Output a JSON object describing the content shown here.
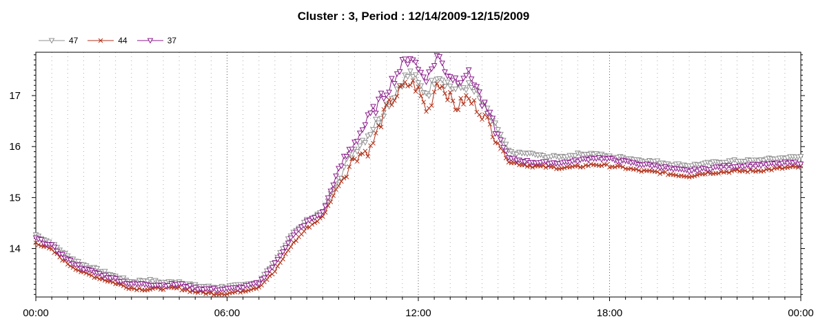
{
  "chart_data": {
    "type": "line",
    "title": "Cluster : 3, Period : 12/14/2009-12/15/2009",
    "xlabel": "",
    "ylabel": "",
    "x_ticks": [
      "00:00",
      "06:00",
      "12:00",
      "18:00",
      "00:00"
    ],
    "x_tick_hours": [
      0,
      6,
      12,
      18,
      24
    ],
    "y_ticks": [
      14,
      15,
      16,
      17
    ],
    "ylim": [
      13.05,
      17.85
    ],
    "xlim_hours": [
      0,
      24
    ],
    "grid": "dotted",
    "legend_position": "top-left",
    "sample_interval_minutes": 5,
    "series": [
      {
        "name": "47",
        "color": "#909090",
        "marker": "triangle-down",
        "points": [
          [
            0,
            14.27
          ],
          [
            0.5,
            14.1
          ],
          [
            1,
            13.85
          ],
          [
            1.5,
            13.68
          ],
          [
            2,
            13.57
          ],
          [
            2.5,
            13.45
          ],
          [
            3,
            13.35
          ],
          [
            3.5,
            13.38
          ],
          [
            4,
            13.33
          ],
          [
            4.5,
            13.35
          ],
          [
            5,
            13.27
          ],
          [
            5.5,
            13.24
          ],
          [
            6,
            13.25
          ],
          [
            6.5,
            13.28
          ],
          [
            7,
            13.35
          ],
          [
            7.5,
            13.75
          ],
          [
            8,
            14.25
          ],
          [
            8.5,
            14.55
          ],
          [
            9,
            14.72
          ],
          [
            9.5,
            15.4
          ],
          [
            10,
            15.95
          ],
          [
            10.5,
            16.3
          ],
          [
            11,
            16.8
          ],
          [
            11.5,
            17.3
          ],
          [
            11.8,
            17.45
          ],
          [
            12,
            17.2
          ],
          [
            12.3,
            17.05
          ],
          [
            12.6,
            17.45
          ],
          [
            12.9,
            17.25
          ],
          [
            13.2,
            17.1
          ],
          [
            13.5,
            17.2
          ],
          [
            13.8,
            17.05
          ],
          [
            14,
            16.8
          ],
          [
            14.3,
            16.55
          ],
          [
            14.6,
            16.2
          ],
          [
            14.85,
            15.9
          ],
          [
            15,
            15.87
          ],
          [
            15.5,
            15.86
          ],
          [
            16,
            15.8
          ],
          [
            16.5,
            15.8
          ],
          [
            17,
            15.85
          ],
          [
            17.5,
            15.86
          ],
          [
            18,
            15.8
          ],
          [
            18.5,
            15.78
          ],
          [
            19,
            15.73
          ],
          [
            19.5,
            15.7
          ],
          [
            20,
            15.65
          ],
          [
            20.5,
            15.63
          ],
          [
            21,
            15.66
          ],
          [
            21.5,
            15.7
          ],
          [
            22,
            15.72
          ],
          [
            22.5,
            15.72
          ],
          [
            23,
            15.75
          ],
          [
            23.5,
            15.78
          ],
          [
            24,
            15.8
          ]
        ]
      },
      {
        "name": "44",
        "color": "#b03018",
        "marker": "x",
        "points": [
          [
            0,
            14.12
          ],
          [
            0.5,
            13.97
          ],
          [
            1,
            13.7
          ],
          [
            1.5,
            13.52
          ],
          [
            2,
            13.42
          ],
          [
            2.5,
            13.32
          ],
          [
            3,
            13.22
          ],
          [
            3.5,
            13.2
          ],
          [
            4,
            13.22
          ],
          [
            4.5,
            13.22
          ],
          [
            5,
            13.15
          ],
          [
            5.5,
            13.12
          ],
          [
            6,
            13.12
          ],
          [
            6.5,
            13.17
          ],
          [
            7,
            13.25
          ],
          [
            7.5,
            13.55
          ],
          [
            8,
            14.05
          ],
          [
            8.5,
            14.4
          ],
          [
            9,
            14.62
          ],
          [
            9.5,
            15.25
          ],
          [
            10,
            15.8
          ],
          [
            10.5,
            15.95
          ],
          [
            11,
            16.75
          ],
          [
            11.5,
            17.15
          ],
          [
            11.8,
            17.25
          ],
          [
            12,
            17.1
          ],
          [
            12.3,
            16.65
          ],
          [
            12.6,
            17.3
          ],
          [
            12.9,
            17.05
          ],
          [
            13.2,
            16.75
          ],
          [
            13.5,
            16.95
          ],
          [
            13.8,
            16.8
          ],
          [
            14,
            16.65
          ],
          [
            14.3,
            16.35
          ],
          [
            14.6,
            15.95
          ],
          [
            14.85,
            15.7
          ],
          [
            15,
            15.68
          ],
          [
            15.5,
            15.62
          ],
          [
            16,
            15.6
          ],
          [
            16.5,
            15.58
          ],
          [
            17,
            15.6
          ],
          [
            17.5,
            15.65
          ],
          [
            18,
            15.62
          ],
          [
            18.5,
            15.58
          ],
          [
            19,
            15.52
          ],
          [
            19.5,
            15.5
          ],
          [
            20,
            15.45
          ],
          [
            20.5,
            15.42
          ],
          [
            21,
            15.48
          ],
          [
            21.5,
            15.5
          ],
          [
            22,
            15.52
          ],
          [
            22.5,
            15.52
          ],
          [
            23,
            15.55
          ],
          [
            23.5,
            15.58
          ],
          [
            24,
            15.6
          ]
        ]
      },
      {
        "name": "37",
        "color": "#8b1a8b",
        "marker": "triangle-down",
        "points": [
          [
            0,
            14.2
          ],
          [
            0.5,
            14.05
          ],
          [
            1,
            13.78
          ],
          [
            1.5,
            13.6
          ],
          [
            2,
            13.5
          ],
          [
            2.5,
            13.4
          ],
          [
            3,
            13.3
          ],
          [
            3.5,
            13.3
          ],
          [
            4,
            13.28
          ],
          [
            4.5,
            13.3
          ],
          [
            5,
            13.22
          ],
          [
            5.5,
            13.2
          ],
          [
            6,
            13.2
          ],
          [
            6.5,
            13.24
          ],
          [
            7,
            13.32
          ],
          [
            7.5,
            13.7
          ],
          [
            8,
            14.2
          ],
          [
            8.5,
            14.52
          ],
          [
            9,
            14.7
          ],
          [
            9.5,
            15.55
          ],
          [
            10,
            16.1
          ],
          [
            10.5,
            16.6
          ],
          [
            11,
            17.1
          ],
          [
            11.5,
            17.6
          ],
          [
            11.8,
            17.8
          ],
          [
            12,
            17.5
          ],
          [
            12.3,
            17.35
          ],
          [
            12.6,
            17.8
          ],
          [
            12.9,
            17.45
          ],
          [
            13.2,
            17.3
          ],
          [
            13.5,
            17.45
          ],
          [
            13.8,
            17.25
          ],
          [
            14,
            16.85
          ],
          [
            14.3,
            16.5
          ],
          [
            14.6,
            16.1
          ],
          [
            14.85,
            15.75
          ],
          [
            15,
            15.75
          ],
          [
            15.5,
            15.7
          ],
          [
            16,
            15.68
          ],
          [
            16.5,
            15.68
          ],
          [
            17,
            15.72
          ],
          [
            17.5,
            15.78
          ],
          [
            18,
            15.75
          ],
          [
            18.5,
            15.7
          ],
          [
            19,
            15.65
          ],
          [
            19.5,
            15.62
          ],
          [
            20,
            15.55
          ],
          [
            20.5,
            15.52
          ],
          [
            21,
            15.56
          ],
          [
            21.5,
            15.6
          ],
          [
            22,
            15.62
          ],
          [
            22.5,
            15.63
          ],
          [
            23,
            15.65
          ],
          [
            23.5,
            15.67
          ],
          [
            24,
            15.68
          ]
        ]
      }
    ]
  }
}
